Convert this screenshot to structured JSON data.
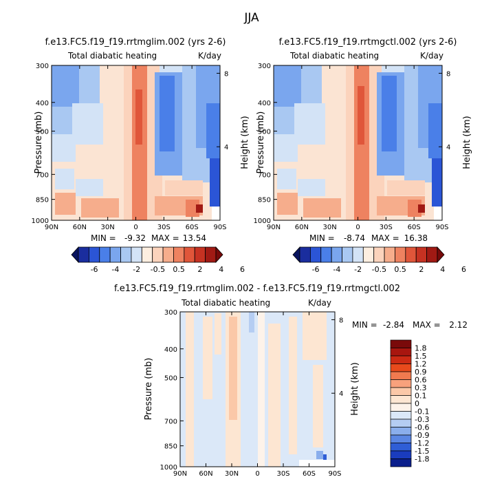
{
  "figure": {
    "season": "JJA",
    "left_title": "f.e13.FC5.f19_f19.rrtmglim.002 (yrs 2-6)",
    "right_title": "f.e13.FC5.f19_f19.rrtmgctl.002 (yrs 2-6)",
    "diff_title": "f.e13.FC5.f19_f19.rrtmglim.002 - f.e13.FC5.f19_f19.rrtmgctl.002"
  },
  "chart_data": [
    {
      "type": "heatmap",
      "title": "f.e13.FC5.f19_f19.rrtmglim.002 (yrs 2-6)",
      "subtitle_left": "Total diabatic heating",
      "subtitle_right": "K/day",
      "ylabel": "Pressure (mb)",
      "ylabel_right": "Height (km)",
      "x_ticks": [
        "90N",
        "60N",
        "30N",
        "0",
        "30S",
        "60S",
        "90S"
      ],
      "y_ticks": [
        "300",
        "400",
        "500",
        "700",
        "850",
        "1000"
      ],
      "y_right_ticks": [
        "8",
        "4"
      ],
      "min_label": "MIN =",
      "min_value": "-9.32",
      "max_label": "MAX =",
      "max_value": "13.54"
    },
    {
      "type": "heatmap",
      "title": "f.e13.FC5.f19_f19.rrtmgctl.002 (yrs 2-6)",
      "subtitle_left": "Total diabatic heating",
      "subtitle_right": "K/day",
      "ylabel": "Pressure (mb)",
      "ylabel_right": "Height (km)",
      "x_ticks": [
        "90N",
        "60N",
        "30N",
        "0",
        "30S",
        "60S",
        "90S"
      ],
      "y_ticks": [
        "300",
        "400",
        "500",
        "700",
        "850",
        "1000"
      ],
      "y_right_ticks": [
        "8",
        "4"
      ],
      "min_label": "MIN =",
      "min_value": "-8.74",
      "max_label": "MAX =",
      "max_value": "16.38"
    },
    {
      "type": "heatmap",
      "title": "f.e13.FC5.f19_f19.rrtmglim.002 - f.e13.FC5.f19_f19.rrtmgctl.002",
      "subtitle_left": "Total diabatic heating",
      "subtitle_right": "K/day",
      "ylabel": "Pressure (mb)",
      "ylabel_right": "Height (km)",
      "x_ticks": [
        "90N",
        "60N",
        "30N",
        "0",
        "30S",
        "60S",
        "90S"
      ],
      "y_ticks": [
        "300",
        "400",
        "500",
        "700",
        "850",
        "1000"
      ],
      "y_right_ticks": [
        "8",
        "4"
      ],
      "min_label": "MIN =",
      "min_value": "-2.84",
      "max_label": "MAX =",
      "max_value": "2.12"
    }
  ],
  "colorbar_main": {
    "labels": [
      "-6",
      "-4",
      "-2",
      "-0.5",
      "0.5",
      "2",
      "4",
      "6"
    ],
    "colors": [
      "#08135e",
      "#1a2d9e",
      "#2b55d6",
      "#4a7fe8",
      "#7aa6ee",
      "#a9c8f2",
      "#d3e3f6",
      "#fdeee0",
      "#fbd3bc",
      "#f6ad8c",
      "#ee8260",
      "#e0563a",
      "#c63222",
      "#a11a14",
      "#760a0a"
    ]
  },
  "colorbar_diff": {
    "labels": [
      "1.8",
      "1.5",
      "1.2",
      "0.9",
      "0.6",
      "0.3",
      "0.1",
      "0",
      "-0.1",
      "-0.3",
      "-0.6",
      "-0.9",
      "-1.2",
      "-1.5",
      "-1.8"
    ],
    "colors": [
      "#7a0a0a",
      "#a8160f",
      "#cc2a14",
      "#e84a1c",
      "#f17a4f",
      "#f8a17c",
      "#fbc8a8",
      "#fde6d2",
      "#fdf3ea",
      "#dbe8f8",
      "#b5cdf2",
      "#8aaeec",
      "#5a86e3",
      "#2f5ed6",
      "#1a3cbe",
      "#0b1f8c"
    ]
  }
}
